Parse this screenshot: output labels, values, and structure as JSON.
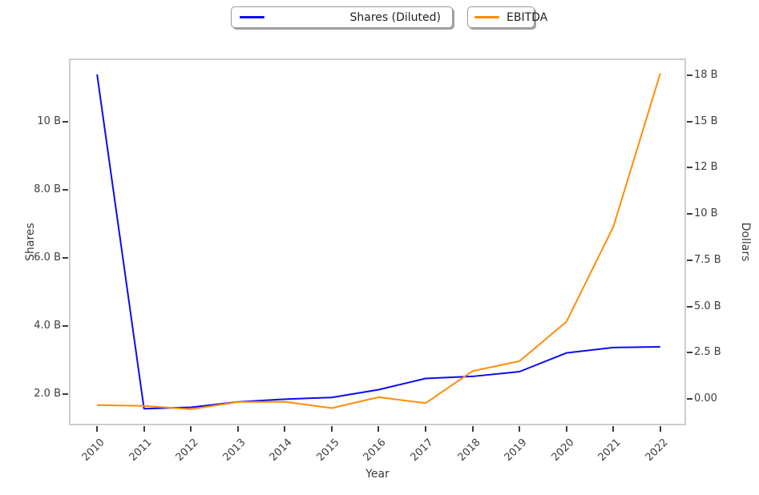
{
  "chart_data": {
    "type": "line",
    "x": [
      2010,
      2011,
      2012,
      2013,
      2014,
      2015,
      2016,
      2017,
      2018,
      2019,
      2020,
      2021,
      2022
    ],
    "series": [
      {
        "name": "Shares (Diluted)",
        "axis": "left",
        "color": "#0b0bf0",
        "values": [
          11.4,
          1.56,
          1.6,
          1.76,
          1.84,
          1.89,
          2.12,
          2.45,
          2.51,
          2.65,
          3.2,
          3.36,
          3.38
        ]
      },
      {
        "name": "EBITDA",
        "axis": "right",
        "color": "#ff8c0a",
        "values": [
          -0.33,
          -0.37,
          -0.55,
          -0.16,
          -0.15,
          -0.49,
          0.1,
          -0.22,
          1.51,
          2.05,
          4.18,
          9.31,
          17.6
        ]
      }
    ],
    "title": "",
    "xlabel": "Year",
    "ylabel_left": "Shares",
    "ylabel_right": "Dollars",
    "xlim": [
      2009.4,
      2022.55
    ],
    "ylim_left": [
      1.07,
      11.87
    ],
    "ylim_right": [
      -1.42,
      18.41
    ],
    "yticks_left": {
      "values": [
        2,
        4,
        6,
        8,
        10
      ],
      "labels": [
        "2.0 B",
        "4.0 B",
        "6.0 B",
        "8.0 B",
        "10 B"
      ]
    },
    "yticks_right": {
      "values": [
        0,
        2.5,
        5,
        7.5,
        10,
        12.5,
        15,
        17.5
      ],
      "labels": [
        "0.00",
        "2.5 B",
        "5.0 B",
        "7.5 B",
        "10 B",
        "12 B",
        "15 B",
        "18 B"
      ]
    },
    "xtick_labels": [
      "2010",
      "2011",
      "2012",
      "2013",
      "2014",
      "2015",
      "2016",
      "2017",
      "2018",
      "2019",
      "2020",
      "2021",
      "2022"
    ],
    "grid": false,
    "legend_position": "top-center",
    "colors": {
      "spine": "#cdcdcd",
      "tick_text": "#3d3d3d",
      "legend_text": "#1f1f1f"
    }
  }
}
